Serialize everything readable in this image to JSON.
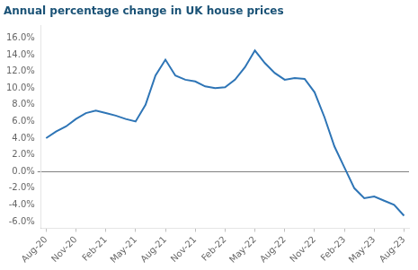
{
  "chart_data": {
    "type": "line",
    "title": "Annual percentage change in UK house prices",
    "categories": [
      "Aug-20",
      null,
      null,
      "Nov-20",
      null,
      null,
      "Feb-21",
      null,
      null,
      "May-21",
      null,
      null,
      "Aug-21",
      null,
      null,
      "Nov-21",
      null,
      null,
      "Feb-22",
      null,
      null,
      "May-22",
      null,
      null,
      "Aug-22",
      null,
      null,
      "Nov-22",
      null,
      null,
      "Feb-23",
      null,
      null,
      "May-23",
      null,
      null,
      "Aug-23"
    ],
    "values": [
      4.0,
      4.8,
      5.4,
      6.3,
      7.0,
      7.3,
      7.0,
      6.7,
      6.3,
      6.0,
      8.0,
      11.5,
      13.4,
      11.5,
      11.0,
      10.8,
      10.2,
      10.0,
      10.1,
      11.0,
      12.5,
      14.5,
      13.0,
      11.8,
      11.0,
      11.2,
      11.1,
      9.5,
      6.5,
      3.0,
      0.5,
      -2.0,
      -3.2,
      -3.0,
      -3.5,
      -4.0,
      -5.3
    ],
    "color": "#2e75b6",
    "ylim": [
      -6.8,
      17.5
    ],
    "yticks": [
      {
        "value": -6.0,
        "label": "-6.0%"
      },
      {
        "value": -4.0,
        "label": "-4.0%"
      },
      {
        "value": -2.0,
        "label": "-2.0%"
      },
      {
        "value": 0.0,
        "label": "0.0%"
      },
      {
        "value": 2.0,
        "label": "2.0%"
      },
      {
        "value": 4.0,
        "label": "4.0%"
      },
      {
        "value": 6.0,
        "label": "6.0%"
      },
      {
        "value": 8.0,
        "label": "8.0%"
      },
      {
        "value": 10.0,
        "label": "10.0%"
      },
      {
        "value": 12.0,
        "label": "12.0%"
      },
      {
        "value": 14.0,
        "label": "14.0%"
      },
      {
        "value": 16.0,
        "label": "16.0%"
      }
    ],
    "grid": false
  }
}
